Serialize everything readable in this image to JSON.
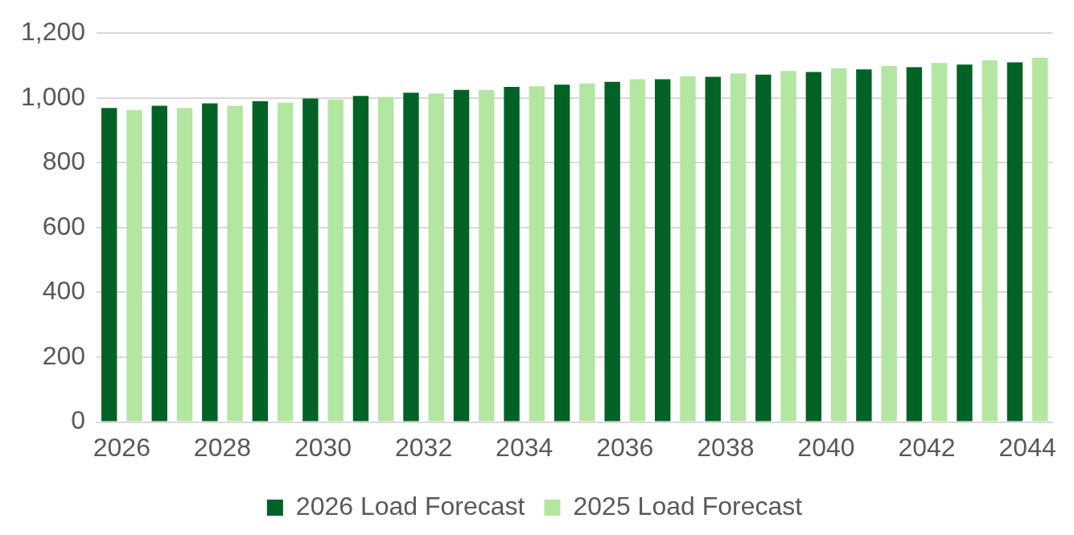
{
  "chart_data": {
    "type": "bar",
    "categories": [
      "2026",
      null,
      "2028",
      null,
      "2030",
      null,
      "2032",
      null,
      "2034",
      null,
      "2036",
      null,
      "2038",
      null,
      "2040",
      null,
      "2042",
      null,
      "2044"
    ],
    "series": [
      {
        "name": "2026 Load Forecast",
        "color": "#006225",
        "values": [
          969,
          976,
          983,
          990,
          998,
          1006,
          1016,
          1025,
          1034,
          1041,
          1050,
          1058,
          1065,
          1072,
          1080,
          1088,
          1095,
          1103,
          1110
        ]
      },
      {
        "name": "2025 Load Forecast",
        "color": "#b3e6a1",
        "values": [
          962,
          969,
          976,
          985,
          995,
          1003,
          1014,
          1025,
          1036,
          1045,
          1058,
          1067,
          1076,
          1083,
          1091,
          1099,
          1108,
          1116,
          1124
        ]
      }
    ],
    "ylim": [
      0,
      1200
    ],
    "yticks": [
      {
        "value": 0,
        "label": "0"
      },
      {
        "value": 200,
        "label": "200"
      },
      {
        "value": 400,
        "label": "400"
      },
      {
        "value": 600,
        "label": "600"
      },
      {
        "value": 800,
        "label": "800"
      },
      {
        "value": 1000,
        "label": "1,000"
      },
      {
        "value": 1200,
        "label": "1,200"
      }
    ],
    "grid": "y",
    "legend": "bottom"
  }
}
